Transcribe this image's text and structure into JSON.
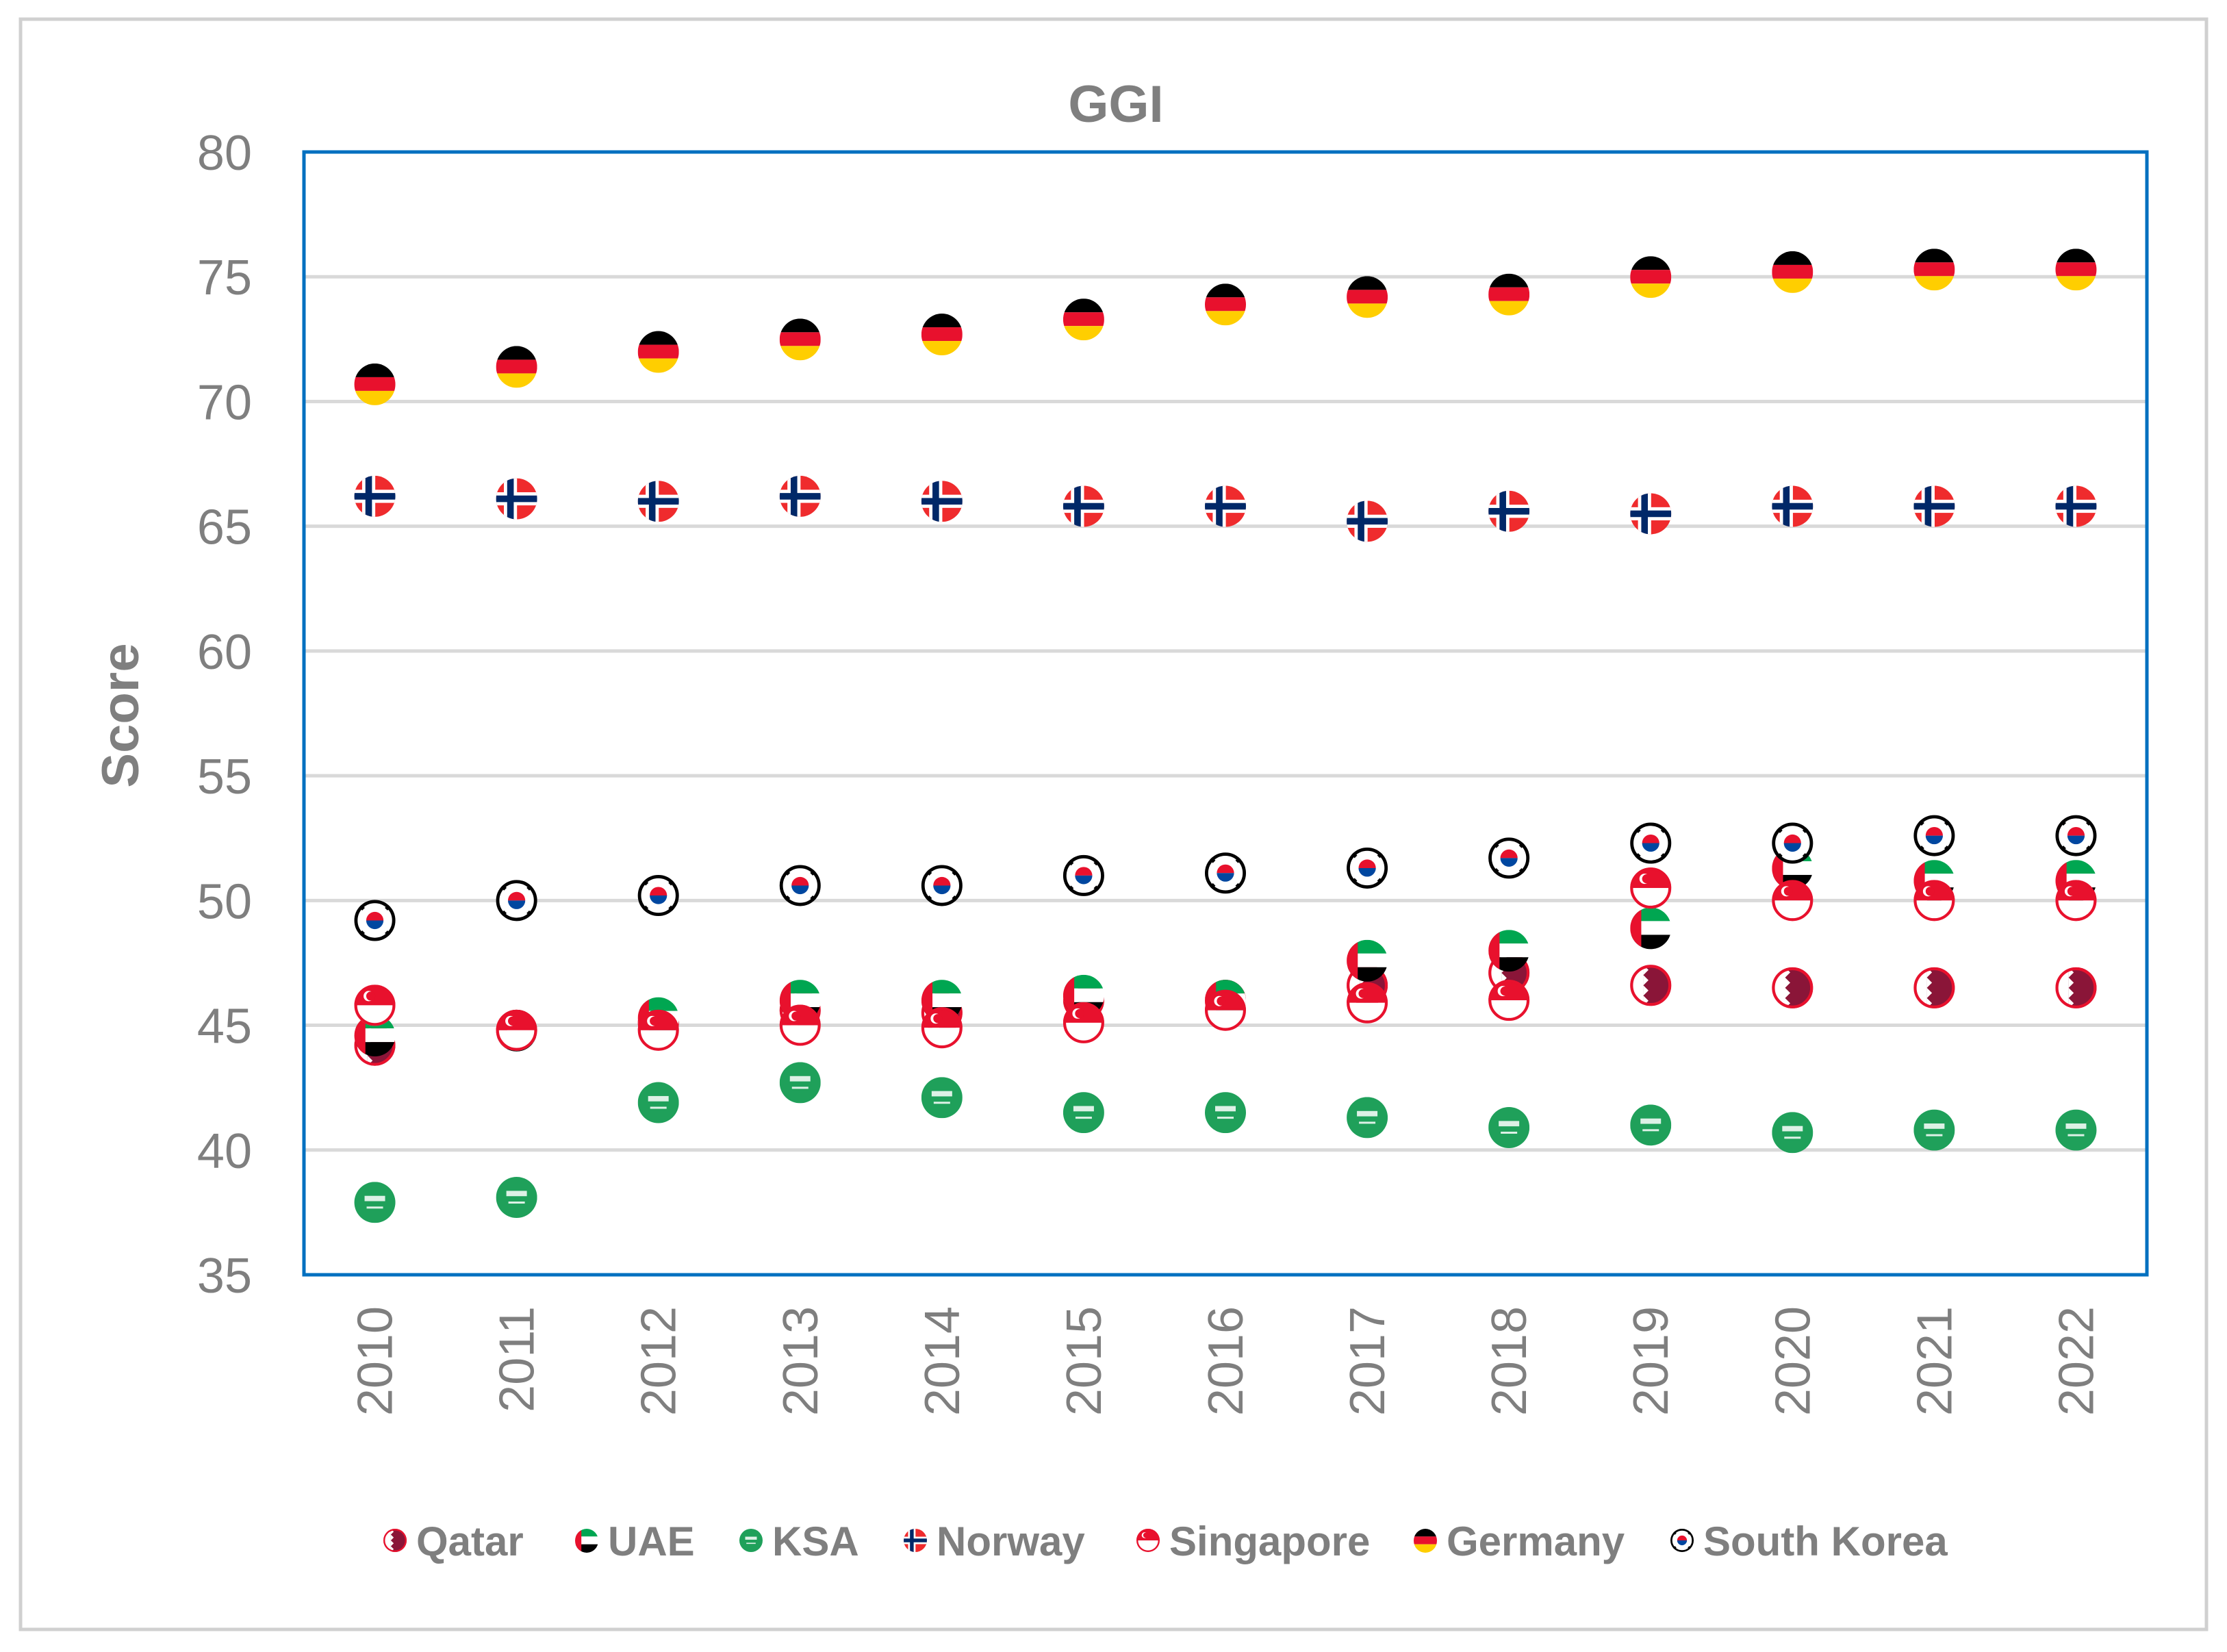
{
  "chart_data": {
    "type": "scatter",
    "title": "GGI",
    "xlabel": "",
    "ylabel": "Score",
    "ylim": [
      35,
      80
    ],
    "y_ticks": [
      35,
      40,
      45,
      50,
      55,
      60,
      65,
      70,
      75,
      80
    ],
    "y_tick_labels": [
      "35",
      "40",
      "45",
      "50",
      "55",
      "60",
      "65",
      "70",
      "75",
      "80"
    ],
    "categories": [
      "2010",
      "2011",
      "2012",
      "2013",
      "2014",
      "2015",
      "2016",
      "2017",
      "2018",
      "2019",
      "2020",
      "2021",
      "2022"
    ],
    "grid": true,
    "legend_position": "bottom",
    "series": [
      {
        "name": "Qatar",
        "marker": "qatar-flag",
        "values": [
          44.2,
          44.8,
          45.1,
          45.6,
          45.5,
          46.0,
          46.0,
          46.6,
          47.1,
          46.6,
          46.5,
          46.5,
          46.5
        ]
      },
      {
        "name": "UAE",
        "marker": "uae-flag",
        "values": [
          44.6,
          44.8,
          45.3,
          46.0,
          46.0,
          46.2,
          46.0,
          47.6,
          48.0,
          48.9,
          51.3,
          50.8,
          50.8
        ]
      },
      {
        "name": "KSA",
        "marker": "ksa-flag",
        "values": [
          37.9,
          38.1,
          41.9,
          42.7,
          42.1,
          41.5,
          41.5,
          41.3,
          40.9,
          41.0,
          40.7,
          40.8,
          40.8
        ]
      },
      {
        "name": "Norway",
        "marker": "norway-flag",
        "values": [
          66.2,
          66.1,
          66.0,
          66.2,
          66.0,
          65.8,
          65.8,
          65.2,
          65.6,
          65.5,
          65.8,
          65.8,
          65.8
        ]
      },
      {
        "name": "Singapore",
        "marker": "singapore-flag",
        "values": [
          45.8,
          44.8,
          44.8,
          45.0,
          44.9,
          45.1,
          45.6,
          45.9,
          46.0,
          50.5,
          50.0,
          50.0,
          50.0
        ]
      },
      {
        "name": "Germany",
        "marker": "germany-flag",
        "values": [
          70.7,
          71.4,
          72.0,
          72.5,
          72.7,
          73.3,
          73.9,
          74.2,
          74.3,
          75.0,
          75.2,
          75.3,
          75.3
        ]
      },
      {
        "name": "South Korea",
        "marker": "south-korea-flag",
        "values": [
          49.2,
          50.0,
          50.2,
          50.6,
          50.6,
          51.0,
          51.1,
          51.3,
          51.7,
          52.3,
          52.3,
          52.6,
          52.6
        ]
      }
    ]
  },
  "colors": {
    "plot_border": "#0070C0",
    "gridline": "#D9D9D9",
    "text": "#7F7F7F",
    "outer_border": "#D0D0D0",
    "red": "#E8112D",
    "green": "#00A651",
    "black": "#000000",
    "gold": "#FFCE00",
    "maroon": "#8A1538",
    "ksa_green": "#1FA05A",
    "norway_red": "#EF2B2D",
    "norway_blue": "#002868",
    "korea_blue": "#0047A0"
  }
}
